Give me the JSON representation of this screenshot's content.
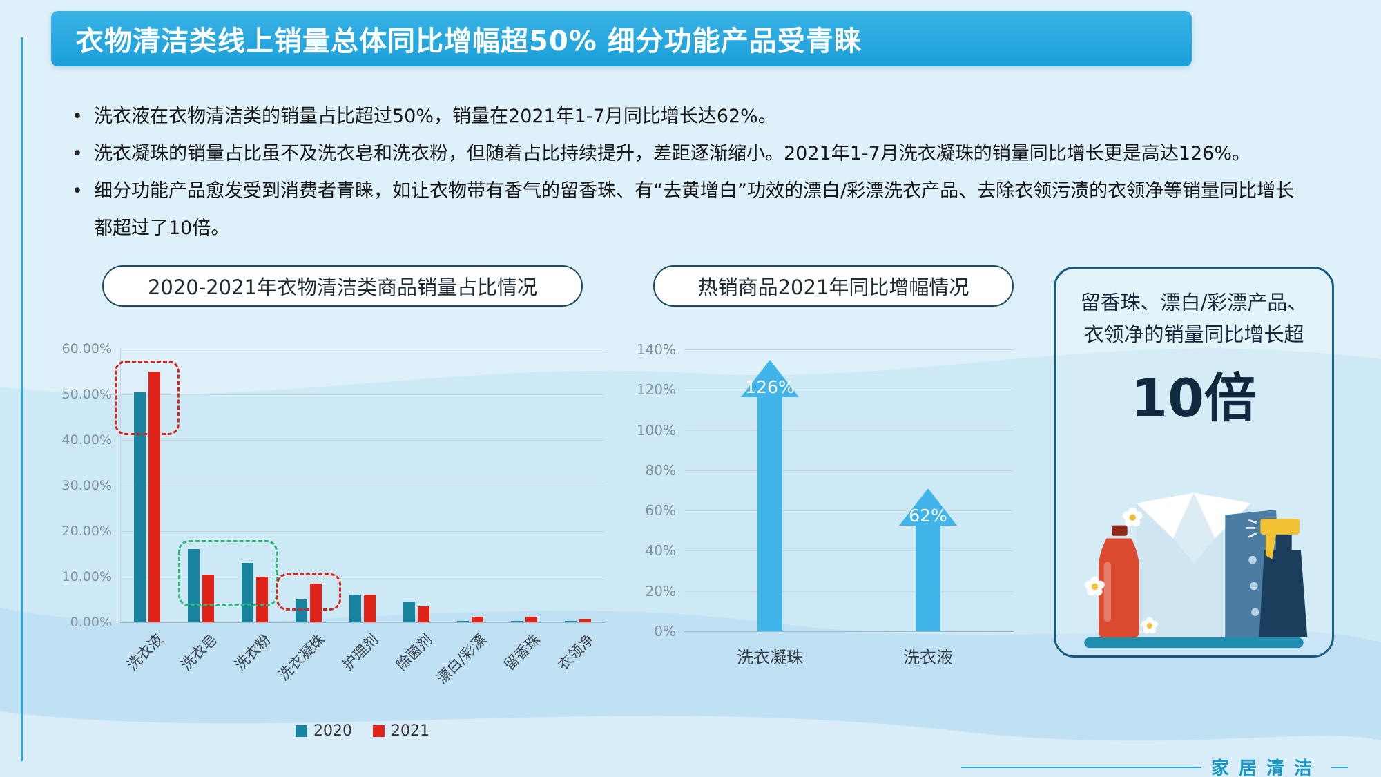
{
  "page": {
    "title": "衣物清洁类线上销量总体同比增幅超50% 细分功能产品受青睐",
    "footer": "家居清洁"
  },
  "bullets": [
    "洗衣液在衣物清洁类的销量占比超过50%，销量在2021年1-7月同比增长达62%。",
    "洗衣凝珠的销量占比虽不及洗衣皂和洗衣粉，但随着占比持续提升，差距逐渐缩小。2021年1-7月洗衣凝珠的销量同比增长更是高达126%。",
    "细分功能产品愈发受到消费者青睐，如让衣物带有香气的留香珠、有“去黄增白”功效的漂白/彩漂洗衣产品、去除衣领污渍的衣领净等销量同比增长都超过了10倍。"
  ],
  "chart_data": [
    {
      "type": "bar",
      "title": "2020-2021年衣物清洁类商品销量占比情况",
      "categories": [
        "洗衣液",
        "洗衣皂",
        "洗衣粉",
        "洗衣凝珠",
        "护理剂",
        "除菌剂",
        "漂白/彩漂",
        "留香珠",
        "衣领净"
      ],
      "series": [
        {
          "name": "2020",
          "color": "#17839f",
          "values": [
            50.5,
            16,
            13,
            5,
            6,
            4.5,
            0.3,
            0.2,
            0.3
          ]
        },
        {
          "name": "2021",
          "color": "#e02318",
          "values": [
            55,
            10.5,
            10,
            8.5,
            6,
            3.5,
            1.2,
            1.2,
            0.8
          ]
        }
      ],
      "ylim": [
        0,
        60
      ],
      "yticks": [
        "60.00%",
        "50.00%",
        "40.00%",
        "30.00%",
        "20.00%",
        "10.00%",
        "0.00%"
      ],
      "grid": true,
      "legend_position": "bottom",
      "annotations": [
        {
          "style": "dashed-box",
          "from": 0,
          "to": 0,
          "color": "#e02318",
          "top": 57.5,
          "bottom": 41
        },
        {
          "style": "dashed-box",
          "from": 1,
          "to": 2,
          "color": "#2eb872",
          "top": 18,
          "bottom": 3.5
        },
        {
          "style": "dashed-box",
          "from": 3,
          "to": 3,
          "color": "#e02318",
          "top": 10.7,
          "bottom": 2.5
        }
      ]
    },
    {
      "type": "bar",
      "subtype": "arrow-bar",
      "title": "热销商品2021年同比增幅情况",
      "categories": [
        "洗衣凝珠",
        "洗衣液"
      ],
      "values": [
        126,
        62
      ],
      "data_labels": [
        "126%",
        "62%"
      ],
      "bar_color": "#41b5e9",
      "ylim": [
        0,
        140
      ],
      "yticks": [
        "140%",
        "120%",
        "100%",
        "80%",
        "60%",
        "40%",
        "20%",
        "0%"
      ],
      "grid": true
    }
  ],
  "highlight_card": {
    "line1": "留香珠、漂白/彩漂产品、",
    "line2": "衣领净的销量同比增长超",
    "big": "10倍"
  },
  "colors": {
    "accent_blue": "#29a9e0",
    "teal_2020": "#17839f",
    "red_2021": "#e02318",
    "arrow_blue": "#41b5e9",
    "footer_teal": "#1897c6"
  }
}
